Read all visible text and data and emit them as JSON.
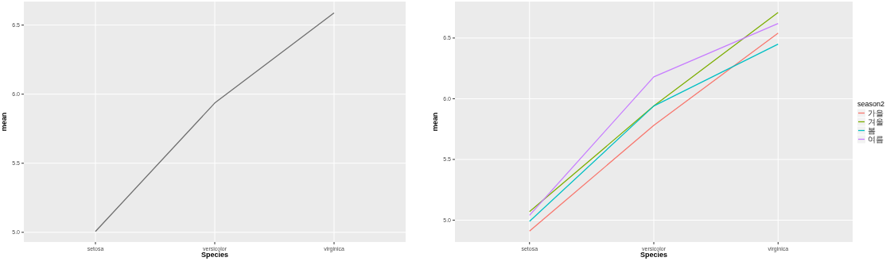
{
  "chart_data": [
    {
      "type": "line",
      "xlabel": "Species",
      "ylabel": "mean",
      "categories": [
        "setosa",
        "versicolor",
        "virginica"
      ],
      "series": [
        {
          "color": "#6e6e6e",
          "values": [
            5.006,
            5.936,
            6.588
          ]
        }
      ],
      "ylim": [
        4.93,
        6.67
      ],
      "yticks": [
        {
          "value": 5,
          "label": "5.0"
        },
        {
          "value": 5.5,
          "label": "5.5"
        },
        {
          "value": 6,
          "label": "6.0"
        },
        {
          "value": 6.5,
          "label": "6.5"
        }
      ],
      "grid": true,
      "legend": false
    },
    {
      "type": "line",
      "xlabel": "Species",
      "ylabel": "mean",
      "legend_title": "season2",
      "categories": [
        "setosa",
        "versicolor",
        "virginica"
      ],
      "series": [
        {
          "name": "가을",
          "color": "#F8766D",
          "values": [
            4.91,
            5.78,
            6.54
          ]
        },
        {
          "name": "겨울",
          "color": "#7CAE00",
          "values": [
            5.07,
            5.94,
            6.71
          ]
        },
        {
          "name": "봄",
          "color": "#00BFC4",
          "values": [
            4.99,
            5.94,
            6.45
          ]
        },
        {
          "name": "여름",
          "color": "#C77CFF",
          "values": [
            5.04,
            6.18,
            6.62
          ]
        }
      ],
      "ylim": [
        4.82,
        6.8
      ],
      "yticks": [
        {
          "value": 5,
          "label": "5.0"
        },
        {
          "value": 5.5,
          "label": "5.5"
        },
        {
          "value": 6,
          "label": "6.0"
        },
        {
          "value": 6.5,
          "label": "6.5"
        }
      ],
      "grid": true,
      "legend": "right"
    }
  ]
}
